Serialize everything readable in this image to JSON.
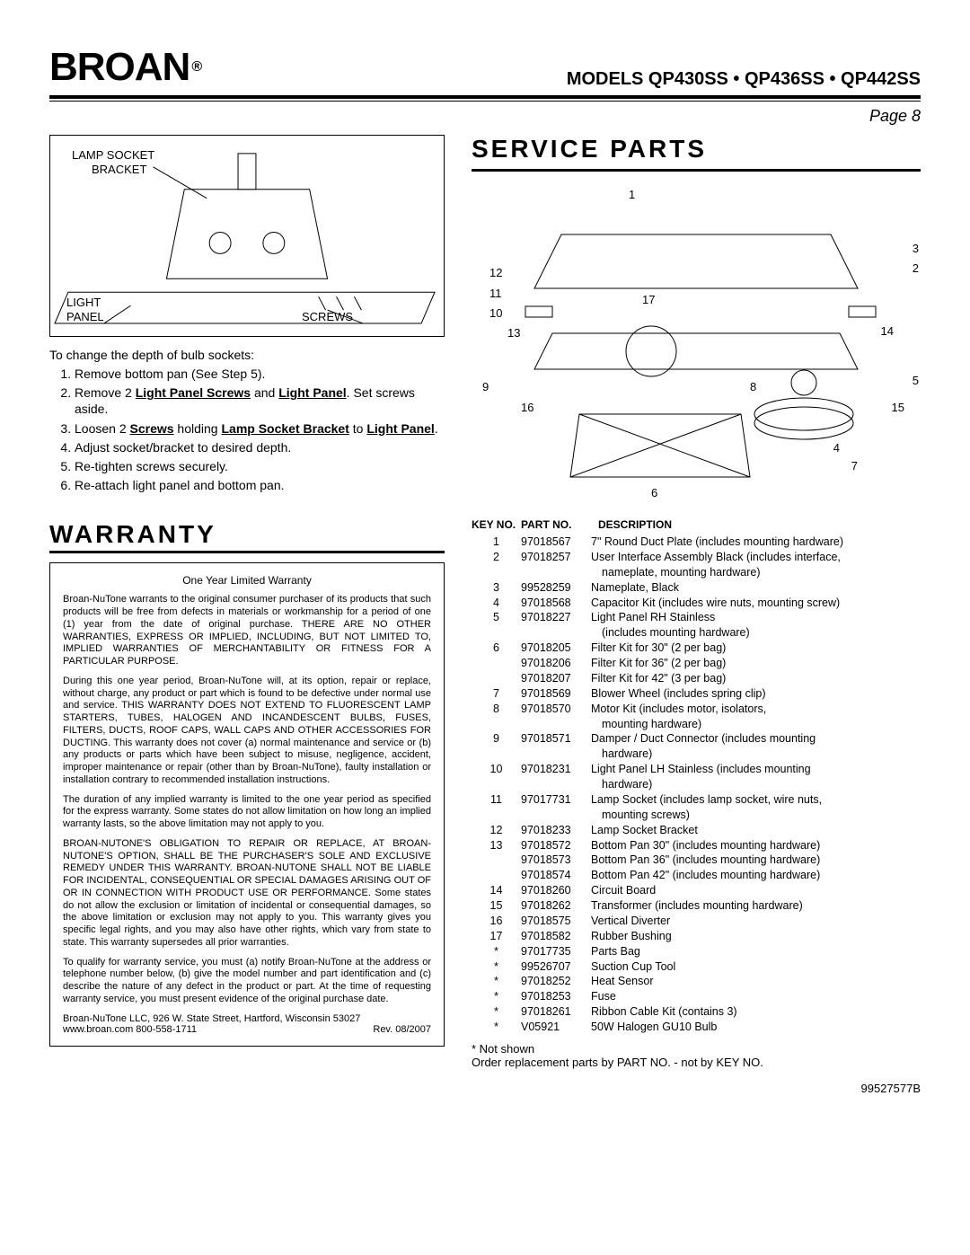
{
  "brand": "BROAN",
  "reg": "®",
  "models_label": "MODELS  QP430SS • QP436SS • QP442SS",
  "page_label": "Page 8",
  "diagram_labels": {
    "lamp_socket": "LAMP SOCKET",
    "bracket": "BRACKET",
    "light": "LIGHT",
    "panel": "PANEL",
    "screws": "SCREWS"
  },
  "instr_lead": "To change the depth of bulb sockets:",
  "instructions": [
    {
      "text": "Remove bottom pan (See Step 5)."
    },
    {
      "pre": "Remove 2 ",
      "b1": "Light Panel Screws",
      "mid": " and ",
      "b2": "Light Panel",
      "post": ". Set screws aside."
    },
    {
      "pre": "Loosen 2 ",
      "b1": "Screws",
      "mid": " holding ",
      "b2": "Lamp Socket Bracket",
      "mid2": " to ",
      "b3": "Light Panel",
      "post": "."
    },
    {
      "text": "Adjust socket/bracket to desired depth."
    },
    {
      "text": "Re-tighten screws securely."
    },
    {
      "text": "Re-attach light panel and bottom pan."
    }
  ],
  "warranty_title": "WARRANTY",
  "warranty_subtitle": "One Year Limited Warranty",
  "warranty_paras": [
    "Broan-NuTone warrants to the original consumer purchaser of its products that such products will be free from defects in materials or workmanship for a period of one (1) year from the date of original purchase. THERE ARE NO OTHER WARRANTIES, EXPRESS OR IMPLIED, INCLUDING, BUT NOT LIMITED TO, IMPLIED WARRANTIES OF MERCHANTABILITY OR FITNESS FOR A PARTICULAR PURPOSE.",
    "During this one year period, Broan-NuTone will, at its option, repair or replace, without charge, any product or part which is found to be defective under normal use and service. THIS WARRANTY DOES NOT EXTEND TO FLUORESCENT LAMP STARTERS, TUBES, HALOGEN AND INCANDESCENT BULBS, FUSES, FILTERS, DUCTS, ROOF CAPS, WALL CAPS AND OTHER ACCESSORIES FOR DUCTING. This warranty does not cover (a) normal maintenance and service or (b) any products or parts which have been subject to misuse, negligence, accident, improper maintenance or repair (other than by Broan-NuTone), faulty installation or installation contrary to recommended installation instructions.",
    "The duration of any implied warranty is limited to the one year period as specified for the express warranty. Some states do not allow limitation on how long an implied warranty lasts, so the above limitation may not apply to you.",
    "BROAN-NUTONE'S OBLIGATION TO REPAIR OR REPLACE, AT BROAN-NUTONE'S OPTION, SHALL BE THE PURCHASER'S SOLE AND EXCLUSIVE REMEDY UNDER THIS WARRANTY. BROAN-NUTONE SHALL NOT BE LIABLE FOR INCIDENTAL, CONSEQUENTIAL OR SPECIAL DAMAGES ARISING OUT OF OR IN CONNECTION WITH PRODUCT USE OR PERFORMANCE. Some states do not allow the exclusion or limitation of incidental or consequential damages, so the above limitation or exclusion may not apply to you. This warranty gives you specific legal rights, and you may also have other rights, which vary from state to state. This warranty supersedes all prior warranties.",
    "To qualify for warranty service, you must (a) notify Broan-NuTone at the address or telephone number below, (b) give the model number and part identification and (c) describe the nature of any defect in the product or part. At the time of requesting warranty service, you must present evidence of the original purchase date."
  ],
  "warranty_addr1": "Broan-NuTone LLC, 926 W. State Street, Hartford, Wisconsin 53027",
  "warranty_addr2": "www.broan.com  800-558-1711",
  "warranty_rev": "Rev. 08/2007",
  "service_title": "SERVICE PARTS",
  "callouts": [
    "1",
    "2",
    "3",
    "4",
    "5",
    "6",
    "7",
    "8",
    "9",
    "10",
    "11",
    "12",
    "13",
    "14",
    "15",
    "16",
    "17"
  ],
  "parts_header": {
    "key": "KEY NO.",
    "part": "PART NO.",
    "desc": "DESCRIPTION"
  },
  "parts": [
    {
      "k": "1",
      "p": "97018567",
      "d": "7\" Round Duct Plate (includes mounting hardware)"
    },
    {
      "k": "2",
      "p": "97018257",
      "d": "User Interface Assembly Black (includes interface,"
    },
    {
      "k": "",
      "p": "",
      "d": "nameplate, mounting hardware)",
      "indent": true
    },
    {
      "k": "3",
      "p": "99528259",
      "d": "Nameplate, Black"
    },
    {
      "k": "4",
      "p": "97018568",
      "d": "Capacitor Kit (includes wire nuts, mounting screw)"
    },
    {
      "k": "5",
      "p": "97018227",
      "d": "Light Panel RH Stainless"
    },
    {
      "k": "",
      "p": "",
      "d": "(includes mounting hardware)",
      "indent": true
    },
    {
      "k": "6",
      "p": "97018205",
      "d": "Filter Kit for 30\" (2 per bag)"
    },
    {
      "k": "",
      "p": "97018206",
      "d": "Filter Kit for 36\" (2 per bag)"
    },
    {
      "k": "",
      "p": "97018207",
      "d": "Filter Kit for 42\" (3 per bag)"
    },
    {
      "k": "7",
      "p": "97018569",
      "d": "Blower Wheel (includes spring clip)"
    },
    {
      "k": "8",
      "p": "97018570",
      "d": "Motor Kit (includes motor, isolators,"
    },
    {
      "k": "",
      "p": "",
      "d": "mounting hardware)",
      "indent": true
    },
    {
      "k": "9",
      "p": "97018571",
      "d": "Damper / Duct Connector (includes mounting"
    },
    {
      "k": "",
      "p": "",
      "d": "hardware)",
      "indent": true
    },
    {
      "k": "10",
      "p": "97018231",
      "d": "Light Panel LH Stainless (includes mounting"
    },
    {
      "k": "",
      "p": "",
      "d": "hardware)",
      "indent": true
    },
    {
      "k": "11",
      "p": "97017731",
      "d": "Lamp Socket (includes lamp socket, wire nuts,"
    },
    {
      "k": "",
      "p": "",
      "d": "mounting screws)",
      "indent": true
    },
    {
      "k": "12",
      "p": "97018233",
      "d": "Lamp Socket Bracket"
    },
    {
      "k": "13",
      "p": "97018572",
      "d": "Bottom Pan 30\" (includes mounting hardware)"
    },
    {
      "k": "",
      "p": "97018573",
      "d": "Bottom Pan 36\" (includes mounting hardware)"
    },
    {
      "k": "",
      "p": "97018574",
      "d": "Bottom Pan 42\" (includes mounting hardware)"
    },
    {
      "k": "14",
      "p": "97018260",
      "d": "Circuit Board"
    },
    {
      "k": "15",
      "p": "97018262",
      "d": "Transformer (includes mounting hardware)"
    },
    {
      "k": "16",
      "p": "97018575",
      "d": "Vertical Diverter"
    },
    {
      "k": "17",
      "p": "97018582",
      "d": "Rubber Bushing"
    },
    {
      "k": "*",
      "p": "97017735",
      "d": "Parts Bag"
    },
    {
      "k": "*",
      "p": "99526707",
      "d": "Suction Cup Tool"
    },
    {
      "k": "*",
      "p": "97018252",
      "d": "Heat Sensor"
    },
    {
      "k": "*",
      "p": "97018253",
      "d": "Fuse"
    },
    {
      "k": "*",
      "p": "97018261",
      "d": "Ribbon Cable Kit (contains 3)"
    },
    {
      "k": "*",
      "p": "V05921",
      "d": "50W Halogen GU10 Bulb"
    }
  ],
  "not_shown": "* Not shown",
  "order_note": "Order replacement parts by PART NO. - not by KEY NO.",
  "doc_no": "99527577B"
}
